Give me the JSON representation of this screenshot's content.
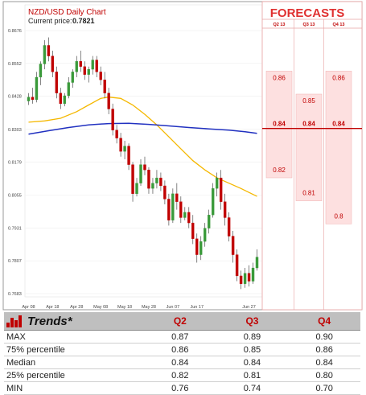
{
  "chart_data": {
    "type": "candlestick",
    "title": "NZD/USD Daily Chart",
    "current_price_label": "Current price:",
    "current_price": "0.7821",
    "y_ticks": [
      "0.8676",
      "0.8552",
      "0.8428",
      "0.8303",
      "0.8179",
      "0.8055",
      "0.7931",
      "0.7807",
      "0.7683"
    ],
    "ylim": [
      0.7683,
      0.8676
    ],
    "x_ticks": [
      "Apr 08",
      "Apr 18",
      "Apr 28",
      "May 08",
      "May 18",
      "May 28",
      "Jun 07",
      "Jun 17",
      "Jun 27"
    ],
    "candles": [
      [
        0.841,
        0.844,
        0.8395,
        0.8425
      ],
      [
        0.8425,
        0.846,
        0.84,
        0.8415
      ],
      [
        0.8415,
        0.852,
        0.8405,
        0.85
      ],
      [
        0.85,
        0.856,
        0.847,
        0.855
      ],
      [
        0.855,
        0.864,
        0.853,
        0.862
      ],
      [
        0.862,
        0.865,
        0.856,
        0.858
      ],
      [
        0.858,
        0.86,
        0.85,
        0.852
      ],
      [
        0.852,
        0.854,
        0.842,
        0.844
      ],
      [
        0.844,
        0.846,
        0.838,
        0.84
      ],
      [
        0.84,
        0.844,
        0.839,
        0.843
      ],
      [
        0.843,
        0.85,
        0.842,
        0.848
      ],
      [
        0.848,
        0.853,
        0.846,
        0.852
      ],
      [
        0.852,
        0.858,
        0.85,
        0.856
      ],
      [
        0.856,
        0.86,
        0.852,
        0.854
      ],
      [
        0.854,
        0.856,
        0.849,
        0.851
      ],
      [
        0.851,
        0.854,
        0.848,
        0.853
      ],
      [
        0.853,
        0.858,
        0.851,
        0.8565
      ],
      [
        0.8565,
        0.858,
        0.85,
        0.852
      ],
      [
        0.852,
        0.854,
        0.847,
        0.849
      ],
      [
        0.849,
        0.852,
        0.842,
        0.844
      ],
      [
        0.844,
        0.846,
        0.836,
        0.838
      ],
      [
        0.838,
        0.84,
        0.828,
        0.83
      ],
      [
        0.83,
        0.832,
        0.825,
        0.827
      ],
      [
        0.827,
        0.829,
        0.82,
        0.822
      ],
      [
        0.822,
        0.826,
        0.819,
        0.824
      ],
      [
        0.824,
        0.825,
        0.815,
        0.817
      ],
      [
        0.817,
        0.818,
        0.803,
        0.806
      ],
      [
        0.806,
        0.812,
        0.805,
        0.81
      ],
      [
        0.81,
        0.819,
        0.809,
        0.817
      ],
      [
        0.817,
        0.82,
        0.813,
        0.815
      ],
      [
        0.815,
        0.816,
        0.806,
        0.808
      ],
      [
        0.808,
        0.812,
        0.806,
        0.81
      ],
      [
        0.81,
        0.815,
        0.808,
        0.812
      ],
      [
        0.812,
        0.814,
        0.807,
        0.809
      ],
      [
        0.809,
        0.811,
        0.802,
        0.804
      ],
      [
        0.804,
        0.806,
        0.794,
        0.796
      ],
      [
        0.796,
        0.808,
        0.795,
        0.806
      ],
      [
        0.806,
        0.81,
        0.8,
        0.803
      ],
      [
        0.803,
        0.805,
        0.795,
        0.797
      ],
      [
        0.797,
        0.801,
        0.796,
        0.799
      ],
      [
        0.799,
        0.801,
        0.793,
        0.795
      ],
      [
        0.795,
        0.798,
        0.787,
        0.789
      ],
      [
        0.789,
        0.791,
        0.78,
        0.783
      ],
      [
        0.783,
        0.79,
        0.781,
        0.788
      ],
      [
        0.788,
        0.795,
        0.786,
        0.793
      ],
      [
        0.793,
        0.8,
        0.791,
        0.798
      ],
      [
        0.798,
        0.81,
        0.797,
        0.808
      ],
      [
        0.808,
        0.814,
        0.805,
        0.812
      ],
      [
        0.812,
        0.815,
        0.8,
        0.803
      ],
      [
        0.803,
        0.806,
        0.794,
        0.797
      ],
      [
        0.797,
        0.799,
        0.788,
        0.79
      ],
      [
        0.79,
        0.792,
        0.78,
        0.783
      ],
      [
        0.783,
        0.785,
        0.773,
        0.775
      ],
      [
        0.775,
        0.777,
        0.77,
        0.772
      ],
      [
        0.772,
        0.778,
        0.7705,
        0.776
      ],
      [
        0.776,
        0.779,
        0.771,
        0.773
      ],
      [
        0.773,
        0.78,
        0.772,
        0.778
      ],
      [
        0.778,
        0.785,
        0.777,
        0.7821
      ]
    ],
    "ma_short": [
      [
        0,
        0.833
      ],
      [
        4,
        0.8335
      ],
      [
        8,
        0.8345
      ],
      [
        12,
        0.837
      ],
      [
        15,
        0.8395
      ],
      [
        18,
        0.842
      ],
      [
        20,
        0.8425
      ],
      [
        23,
        0.842
      ],
      [
        26,
        0.8395
      ],
      [
        29,
        0.836
      ],
      [
        32,
        0.832
      ],
      [
        35,
        0.8275
      ],
      [
        38,
        0.823
      ],
      [
        41,
        0.8185
      ],
      [
        44,
        0.815
      ],
      [
        47,
        0.812
      ],
      [
        50,
        0.81
      ],
      [
        53,
        0.808
      ],
      [
        55,
        0.8065
      ],
      [
        57,
        0.805
      ]
    ],
    "ma_long": [
      [
        0,
        0.8285
      ],
      [
        5,
        0.8298
      ],
      [
        10,
        0.831
      ],
      [
        15,
        0.832
      ],
      [
        20,
        0.8325
      ],
      [
        25,
        0.8326
      ],
      [
        30,
        0.8322
      ],
      [
        35,
        0.8316
      ],
      [
        40,
        0.831
      ],
      [
        45,
        0.8305
      ],
      [
        50,
        0.83
      ],
      [
        54,
        0.8294
      ],
      [
        57,
        0.8288
      ]
    ],
    "colors": {
      "up": "#3a9a3a",
      "down": "#c00000",
      "ma_short": "#f5b800",
      "ma_long": "#2030c0"
    }
  },
  "forecasts": {
    "title": "FORECASTS",
    "columns": [
      {
        "label": "Q2 13",
        "values": [
          "0.86",
          "0.84",
          "0.82"
        ],
        "value_nums": [
          0.86,
          0.84,
          0.82
        ],
        "range": [
          0.76,
          0.87
        ]
      },
      {
        "label": "Q3 13",
        "values": [
          "0.85",
          "0.84",
          "0.81"
        ],
        "value_nums": [
          0.85,
          0.84,
          0.81
        ],
        "range": [
          0.74,
          0.89
        ]
      },
      {
        "label": "Q4 13",
        "values": [
          "0.86",
          "0.84",
          "0.8"
        ],
        "value_nums": [
          0.86,
          0.84,
          0.8
        ],
        "range": [
          0.7,
          0.9
        ]
      }
    ],
    "median_line": 0.84
  },
  "trends": {
    "title": "Trends*",
    "headers": [
      "Q2",
      "Q3",
      "Q4"
    ],
    "rows": [
      {
        "label": "MAX",
        "values": [
          "0.87",
          "0.89",
          "0.90"
        ]
      },
      {
        "label": "75% percentile",
        "values": [
          "0.86",
          "0.85",
          "0.86"
        ]
      },
      {
        "label": "Median",
        "values": [
          "0.84",
          "0.84",
          "0.84"
        ]
      },
      {
        "label": "25% percentile",
        "values": [
          "0.82",
          "0.81",
          "0.80"
        ]
      },
      {
        "label": "MIN",
        "values": [
          "0.76",
          "0.74",
          "0.70"
        ]
      }
    ]
  }
}
